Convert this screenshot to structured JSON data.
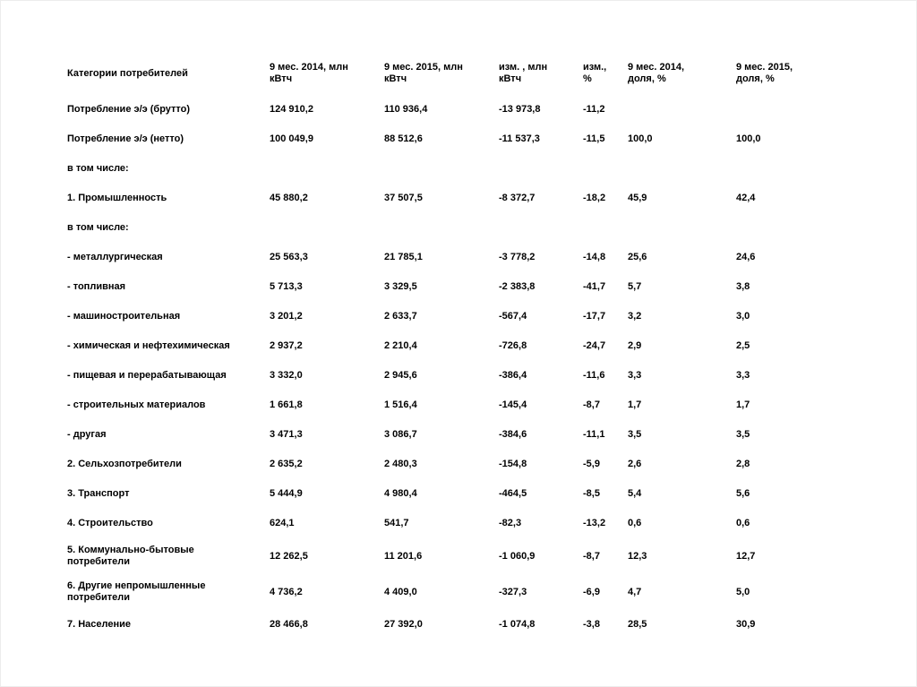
{
  "page": {
    "background": "#ffffff",
    "border_color": "#ececec",
    "text_color": "#000000"
  },
  "table": {
    "columns": [
      "Категории потребителей",
      "9 мес. 2014, млн кВтч",
      "9 мес. 2015, млн кВтч",
      "изм. , млн кВтч",
      "изм., %",
      "9 мес. 2014, доля, %",
      "9 мес. 2015, доля, %"
    ],
    "rows": [
      [
        "Потребление э/э (брутто)",
        "124 910,2",
        "110 936,4",
        "-13 973,8",
        "-11,2",
        "",
        ""
      ],
      [
        "Потребление э/э (нетто)",
        "100 049,9",
        "88 512,6",
        "-11 537,3",
        "-11,5",
        "100,0",
        "100,0"
      ],
      [
        "в том числе:",
        "",
        "",
        "",
        "",
        "",
        ""
      ],
      [
        "1. Промышленность",
        "45 880,2",
        "37 507,5",
        "-8 372,7",
        "-18,2",
        "45,9",
        "42,4"
      ],
      [
        "в том числе:",
        "",
        "",
        "",
        "",
        "",
        ""
      ],
      [
        "- металлургическая",
        "25 563,3",
        "21 785,1",
        "-3 778,2",
        "-14,8",
        "25,6",
        "24,6"
      ],
      [
        "- топливная",
        "5 713,3",
        "3 329,5",
        "-2 383,8",
        "-41,7",
        "5,7",
        "3,8"
      ],
      [
        "- машиностроительная",
        "3 201,2",
        "2 633,7",
        "-567,4",
        "-17,7",
        "3,2",
        "3,0"
      ],
      [
        "- химическая и нефтехимическая",
        "2 937,2",
        "2 210,4",
        "-726,8",
        "-24,7",
        "2,9",
        "2,5"
      ],
      [
        "- пищевая и перерабатывающая",
        "3 332,0",
        "2 945,6",
        "-386,4",
        "-11,6",
        "3,3",
        "3,3"
      ],
      [
        "- строительных материалов",
        "1 661,8",
        "1 516,4",
        "-145,4",
        "-8,7",
        "1,7",
        "1,7"
      ],
      [
        "- другая",
        "3 471,3",
        "3 086,7",
        "-384,6",
        "-11,1",
        "3,5",
        "3,5"
      ],
      [
        "2. Сельхозпотребители",
        "2 635,2",
        "2 480,3",
        "-154,8",
        "-5,9",
        "2,6",
        "2,8"
      ],
      [
        "3. Транспорт",
        "5 444,9",
        "4 980,4",
        "-464,5",
        "-8,5",
        "5,4",
        "5,6"
      ],
      [
        "4. Строительство",
        "624,1",
        "541,7",
        "-82,3",
        "-13,2",
        "0,6",
        "0,6"
      ],
      [
        "5. Коммунально-бытовые потребители",
        "12 262,5",
        "11 201,6",
        "-1 060,9",
        "-8,7",
        "12,3",
        "12,7"
      ],
      [
        "6. Другие непромышленные потребители",
        "4 736,2",
        "4 409,0",
        "-327,3",
        "-6,9",
        "4,7",
        "5,0"
      ],
      [
        "7. Население",
        "28 466,8",
        "27 392,0",
        "-1 074,8",
        "-3,8",
        "28,5",
        "30,9"
      ]
    ]
  }
}
